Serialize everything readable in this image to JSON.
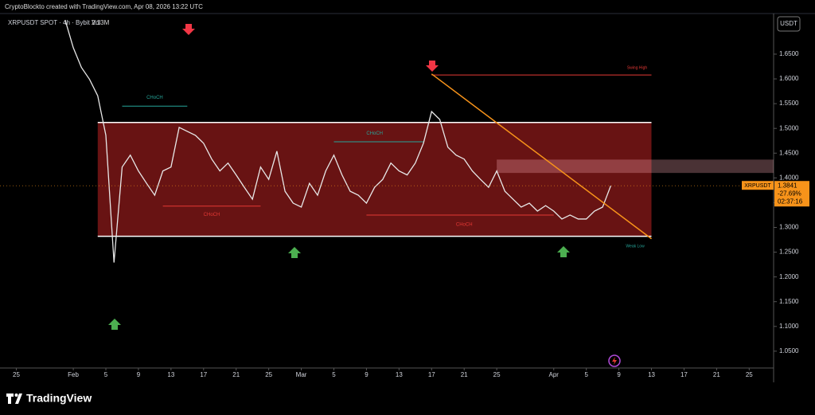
{
  "header": "CryptoBlockto created with TradingView.com, Apr 08, 2026 13:22 UTC",
  "brand": "TradingView",
  "chart_data": {
    "type": "line",
    "title": "XRPUSDT SPOT · 4h · Bybit  Vol",
    "volume": "2.13M",
    "currency": "USDT",
    "x": [
      "01-31",
      "02-01",
      "02-02",
      "02-03",
      "02-04",
      "02-05",
      "02-06",
      "02-07",
      "02-08",
      "02-09",
      "02-10",
      "02-11",
      "02-12",
      "02-13",
      "02-14",
      "02-15",
      "02-16",
      "02-17",
      "02-18",
      "02-19",
      "02-20",
      "02-21",
      "02-22",
      "02-23",
      "02-24",
      "02-25",
      "02-26",
      "02-27",
      "02-28",
      "03-01",
      "03-02",
      "03-03",
      "03-04",
      "03-05",
      "03-06",
      "03-07",
      "03-08",
      "03-09",
      "03-10",
      "03-11",
      "03-12",
      "03-13",
      "03-14",
      "03-15",
      "03-16",
      "03-17",
      "03-18",
      "03-19",
      "03-20",
      "03-21",
      "03-22",
      "03-23",
      "03-24",
      "03-25",
      "03-26",
      "03-27",
      "03-28",
      "03-29",
      "03-30",
      "03-31",
      "04-01",
      "04-02",
      "04-03",
      "04-04",
      "04-05",
      "04-06",
      "04-07",
      "04-08"
    ],
    "series": [
      {
        "name": "XRPUSDT",
        "color": "#e8e8e8",
        "values": [
          1.719,
          1.663,
          1.623,
          1.599,
          1.566,
          1.486,
          1.229,
          1.422,
          1.446,
          1.414,
          1.389,
          1.365,
          1.414,
          1.422,
          1.502,
          1.494,
          1.486,
          1.47,
          1.438,
          1.414,
          1.43,
          1.406,
          1.381,
          1.357,
          1.422,
          1.397,
          1.454,
          1.373,
          1.349,
          1.341,
          1.389,
          1.365,
          1.414,
          1.446,
          1.406,
          1.373,
          1.365,
          1.349,
          1.381,
          1.397,
          1.43,
          1.414,
          1.406,
          1.43,
          1.47,
          1.534,
          1.518,
          1.462,
          1.446,
          1.438,
          1.414,
          1.397,
          1.381,
          1.414,
          1.373,
          1.357,
          1.341,
          1.349,
          1.333,
          1.344,
          1.333,
          1.317,
          1.325,
          1.317,
          1.317,
          1.333,
          1.341,
          1.3841
        ]
      }
    ],
    "change": "-27.69%",
    "countdown": "02:37:16",
    "xlim": [
      "01-23",
      "04-28"
    ],
    "xticks": [
      {
        "value": "01-25",
        "label": "25"
      },
      {
        "value": "02-01",
        "label": "Feb"
      },
      {
        "value": "02-05",
        "label": "5"
      },
      {
        "value": "02-09",
        "label": "9"
      },
      {
        "value": "02-13",
        "label": "13"
      },
      {
        "value": "02-17",
        "label": "17"
      },
      {
        "value": "02-21",
        "label": "21"
      },
      {
        "value": "02-25",
        "label": "25"
      },
      {
        "value": "03-01",
        "label": "Mar"
      },
      {
        "value": "03-05",
        "label": "5"
      },
      {
        "value": "03-09",
        "label": "9"
      },
      {
        "value": "03-13",
        "label": "13"
      },
      {
        "value": "03-17",
        "label": "17"
      },
      {
        "value": "03-21",
        "label": "21"
      },
      {
        "value": "03-25",
        "label": "25"
      },
      {
        "value": "04-01",
        "label": "Apr"
      },
      {
        "value": "04-05",
        "label": "5"
      },
      {
        "value": "04-09",
        "label": "9"
      },
      {
        "value": "04-13",
        "label": "13"
      },
      {
        "value": "04-17",
        "label": "17"
      },
      {
        "value": "04-21",
        "label": "21"
      },
      {
        "value": "04-25",
        "label": "25"
      }
    ],
    "ylim": [
      1.016,
      1.732
    ],
    "yticks": [
      {
        "value": 1.05,
        "label": "1.0500"
      },
      {
        "value": 1.1,
        "label": "1.1000"
      },
      {
        "value": 1.15,
        "label": "1.1500"
      },
      {
        "value": 1.2,
        "label": "1.2000"
      },
      {
        "value": 1.25,
        "label": "1.2500"
      },
      {
        "value": 1.3,
        "label": "1.3000"
      },
      {
        "value": 1.35,
        "label": "1.3500"
      },
      {
        "value": 1.4,
        "label": "1.4000"
      },
      {
        "value": 1.45,
        "label": "1.4500"
      },
      {
        "value": 1.5,
        "label": "1.5000"
      },
      {
        "value": 1.55,
        "label": "1.5500"
      },
      {
        "value": 1.6,
        "label": "1.6000"
      },
      {
        "value": 1.65,
        "label": "1.6500"
      }
    ],
    "range_box": {
      "x": [
        "02-04",
        "04-13"
      ],
      "y": [
        1.282,
        1.512
      ],
      "color": "#8b1a1a"
    },
    "zone": {
      "x": [
        "03-25",
        "04-28"
      ],
      "y": [
        1.41,
        1.437
      ]
    },
    "trendline": {
      "x": [
        "03-17",
        "04-13"
      ],
      "y": [
        1.61,
        1.277
      ],
      "color": "#f7931a"
    },
    "swing_high": {
      "label": "Swing High",
      "x": [
        "03-17",
        "04-13"
      ],
      "y": 1.608,
      "color": "#e53935"
    },
    "weak_low": {
      "label": "Weak Low",
      "x": "04-11",
      "y": 1.262
    },
    "structure": [
      {
        "label": "CHoCH",
        "x": [
          "02-07",
          "02-15"
        ],
        "y": 1.545,
        "label_x": "02-11",
        "label_y": 1.562,
        "color": "#26a69a"
      },
      {
        "label": "CHoCH",
        "x": [
          "03-05",
          "03-16"
        ],
        "y": 1.473,
        "label_x": "03-10",
        "label_y": 1.49,
        "color": "#26a69a"
      },
      {
        "label": "CHoCH",
        "x": [
          "02-12",
          "02-24"
        ],
        "y": 1.343,
        "label_x": "02-18",
        "label_y": 1.326,
        "color": "#e53935"
      },
      {
        "label": "CHoCH",
        "x": [
          "03-09",
          "04-01"
        ],
        "y": 1.325,
        "label_x": "03-21",
        "label_y": 1.306,
        "color": "#e53935"
      }
    ]
  }
}
